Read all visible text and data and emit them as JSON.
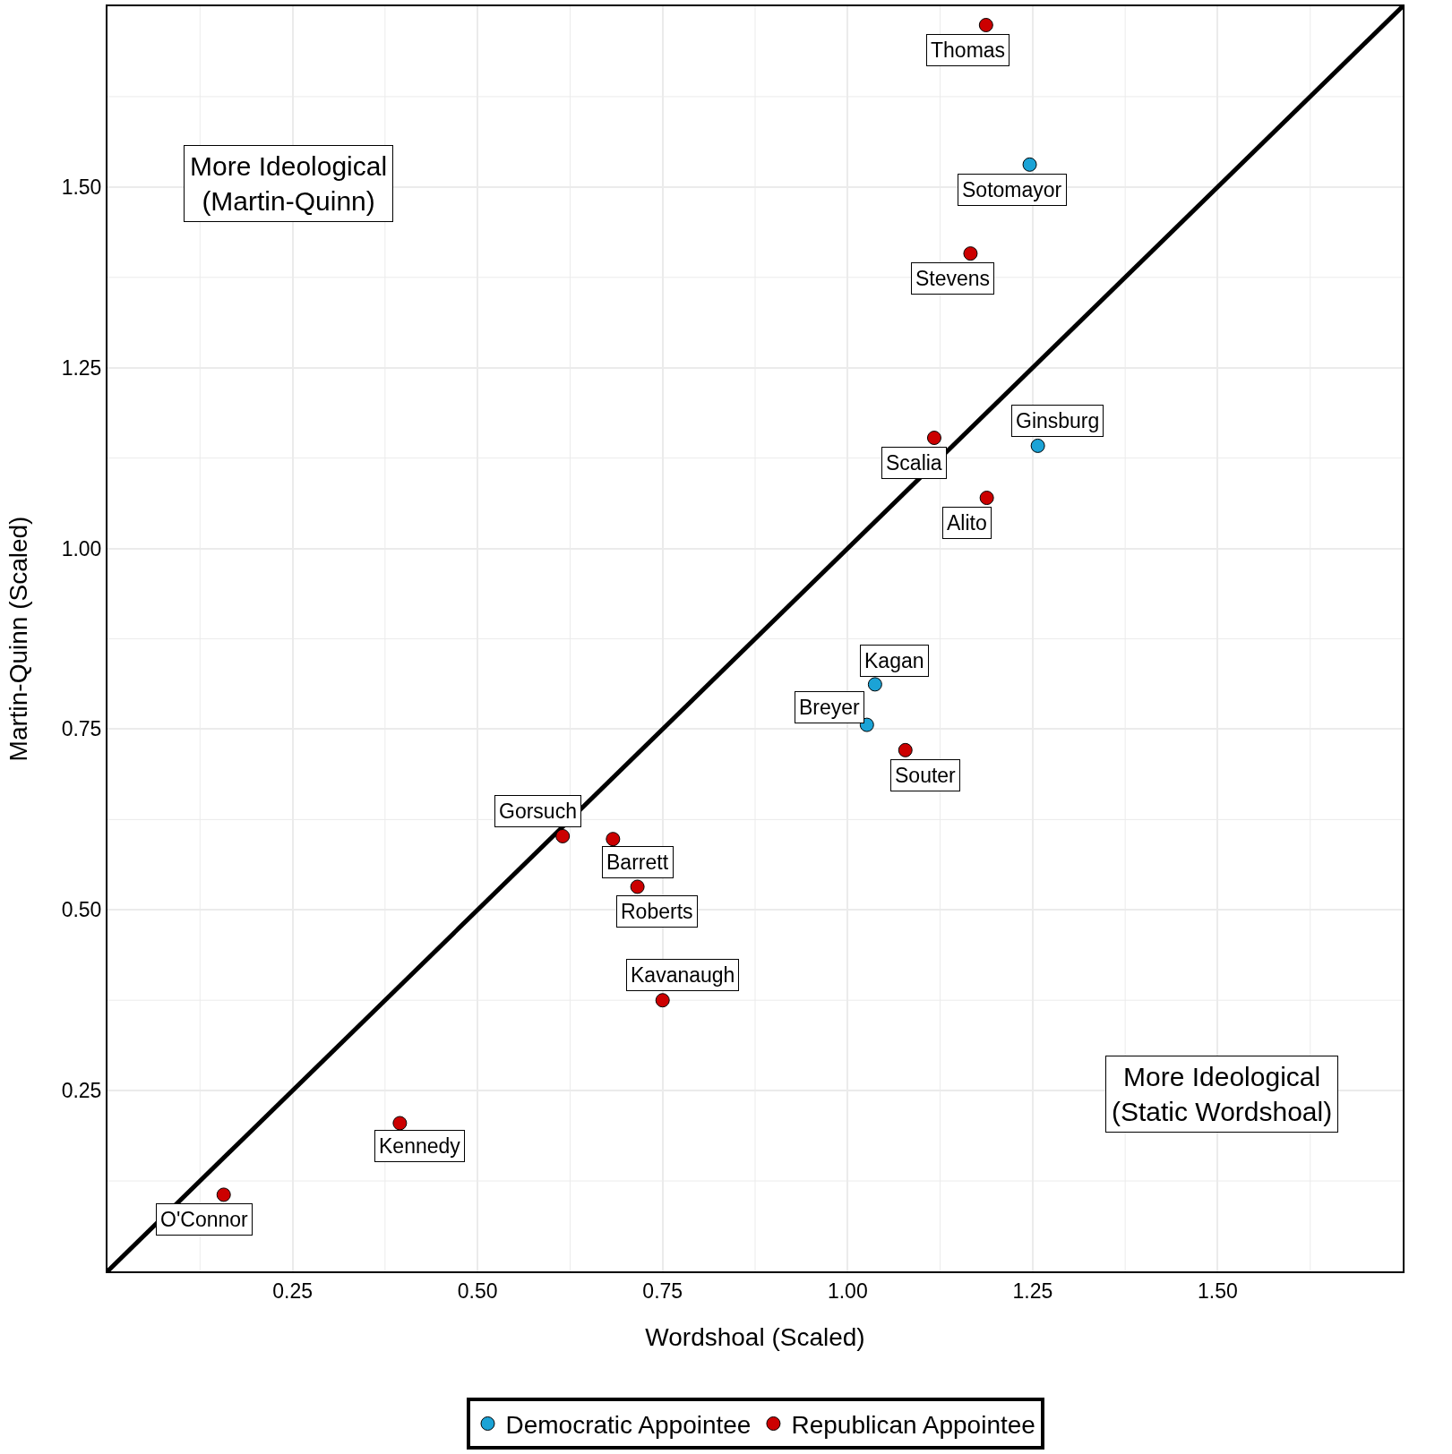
{
  "chart_data": {
    "type": "scatter",
    "xlabel": "Wordshoal (Scaled)",
    "ylabel": "Martin-Quinn (Scaled)",
    "xlim": [
      0,
      1.75
    ],
    "ylim": [
      0,
      1.75
    ],
    "xticks": [
      {
        "value": 0.25,
        "label": "0.25"
      },
      {
        "value": 0.5,
        "label": "0.50"
      },
      {
        "value": 0.75,
        "label": "0.75"
      },
      {
        "value": 1.0,
        "label": "1.00"
      },
      {
        "value": 1.25,
        "label": "1.25"
      },
      {
        "value": 1.5,
        "label": "1.50"
      }
    ],
    "yticks": [
      {
        "value": 0.25,
        "label": "0.25"
      },
      {
        "value": 0.5,
        "label": "0.50"
      },
      {
        "value": 0.75,
        "label": "0.75"
      },
      {
        "value": 1.0,
        "label": "1.00"
      },
      {
        "value": 1.25,
        "label": "1.25"
      },
      {
        "value": 1.5,
        "label": "1.50"
      }
    ],
    "grid": true,
    "legend": "bottom",
    "marker": "circle",
    "series": [
      {
        "type": "line",
        "color": "#000000",
        "x": [
          0,
          1.75
        ],
        "values": [
          0,
          1.75
        ],
        "line_style": "solid",
        "marker": "none"
      },
      {
        "name": "Democratic Appointee",
        "color": "#1ba3d6",
        "x": [
          1.246,
          1.257,
          1.037,
          1.026
        ],
        "values": [
          1.531,
          1.142,
          0.812,
          0.756
        ]
      },
      {
        "name": "Republican Appointee",
        "color": "#cc0000",
        "x": [
          1.187,
          1.166,
          1.117,
          1.188,
          1.078,
          0.615,
          0.683,
          0.716,
          0.75,
          0.395,
          0.157
        ],
        "values": [
          1.724,
          1.408,
          1.153,
          1.07,
          0.721,
          0.602,
          0.598,
          0.532,
          0.375,
          0.205,
          0.106
        ]
      }
    ],
    "annotations": [
      "More Ideological\n(Martin-Quinn)",
      "More Ideological\n(Static Wordshoal)",
      {
        "text": "Thomas",
        "x": 1.187,
        "y": 1.724
      },
      {
        "text": "Sotomayor",
        "x": 1.246,
        "y": 1.531
      },
      {
        "text": "Stevens",
        "x": 1.166,
        "y": 1.408
      },
      {
        "text": "Scalia",
        "x": 1.117,
        "y": 1.153
      },
      {
        "text": "Ginsburg",
        "x": 1.257,
        "y": 1.142
      },
      {
        "text": "Alito",
        "x": 1.188,
        "y": 1.07
      },
      {
        "text": "Kagan",
        "x": 1.037,
        "y": 0.812
      },
      {
        "text": "Breyer",
        "x": 1.026,
        "y": 0.756
      },
      {
        "text": "Souter",
        "x": 1.078,
        "y": 0.721
      },
      {
        "text": "Gorsuch",
        "x": 0.615,
        "y": 0.602
      },
      {
        "text": "Barrett",
        "x": 0.683,
        "y": 0.598
      },
      {
        "text": "Roberts",
        "x": 0.716,
        "y": 0.532
      },
      {
        "text": "Kavanaugh",
        "x": 0.75,
        "y": 0.375
      },
      {
        "text": "Kennedy",
        "x": 0.395,
        "y": 0.205
      },
      {
        "text": "O'Connor",
        "x": 0.157,
        "y": 0.106
      }
    ]
  }
}
